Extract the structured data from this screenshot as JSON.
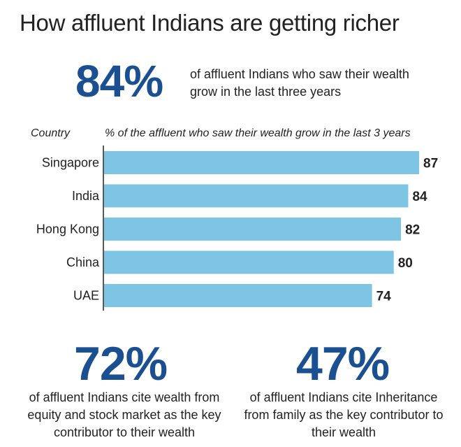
{
  "title": "How affluent Indians are getting richer",
  "hero": {
    "value": "84%",
    "text": "of affluent Indians who saw their wealth grow in the last three years"
  },
  "chart_data": {
    "type": "bar",
    "orientation": "horizontal",
    "category_header": "Country",
    "value_header": "% of the affluent who saw their wealth grow in the last 3 years",
    "categories": [
      "Singapore",
      "India",
      "Hong Kong",
      "China",
      "UAE"
    ],
    "values": [
      87,
      84,
      82,
      80,
      74
    ],
    "xlim": [
      0,
      87
    ],
    "bar_color": "#7ec5e3",
    "grid": false,
    "legend": "none"
  },
  "stats": [
    {
      "value": "72%",
      "text": "of affluent Indians cite wealth from equity and stock market as the key contributor to their wealth"
    },
    {
      "value": "47%",
      "text": "of affluent Indians cite Inheritance from family as the key contributor to their wealth"
    }
  ],
  "colors": {
    "accent": "#1a4f91",
    "bar": "#7ec5e3",
    "text": "#222222"
  }
}
